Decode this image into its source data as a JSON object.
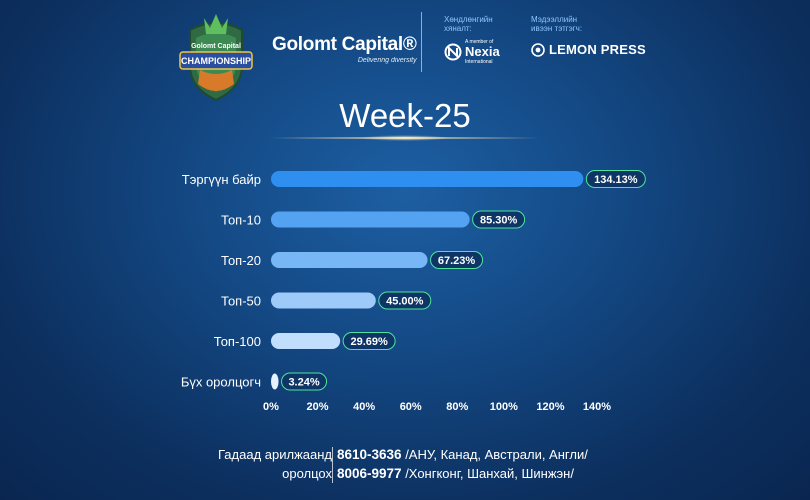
{
  "header": {
    "emblem": {
      "line1": "Golomt Capital",
      "line2": "CHAMPIONSHIP"
    },
    "brand": {
      "name": "Golomt Capital®",
      "tagline": "Delivering diversity"
    },
    "sponsor_audit": {
      "caption_line1": "Хөндлөнгийн",
      "caption_line2": "хяналт:",
      "small": "A member of",
      "name": "Nexia",
      "sub": "International"
    },
    "sponsor_media": {
      "caption_line1": "Мэдээллийн",
      "caption_line2": "ивээн тэтгэгч:",
      "name": "LEMON PRESS"
    }
  },
  "title": "Week-25",
  "colors": {
    "accent": "#2f8ff0",
    "bar_light": "#e6f2ff",
    "label_border": "#4ee39c",
    "background": "#134683"
  },
  "chart_data": {
    "type": "bar",
    "orientation": "horizontal",
    "categories": [
      "Тэргүүн байр",
      "Топ-10",
      "Топ-20",
      "Топ-50",
      "Топ-100",
      "Бүх оролцогч"
    ],
    "values": [
      134.13,
      85.3,
      67.23,
      45.0,
      29.69,
      3.24
    ],
    "value_labels": [
      "134.13%",
      "85.30%",
      "67.23%",
      "45.00%",
      "29.69%",
      "3.24%"
    ],
    "xlim": [
      0,
      140
    ],
    "xticks": [
      "0%",
      "20%",
      "40%",
      "60%",
      "80%",
      "100%",
      "120%",
      "140%"
    ],
    "grid": false,
    "title": "",
    "xlabel": "",
    "ylabel": ""
  },
  "footer": {
    "left_line1": "Гадаад арилжаанд",
    "left_line2": "оролцох",
    "phone1": "8610-3636",
    "region1": "/АНУ, Канад, Австрали, Англи/",
    "phone2": "8006-9977",
    "region2": "/Хонгконг, Шанхай, Шинжэн/"
  }
}
